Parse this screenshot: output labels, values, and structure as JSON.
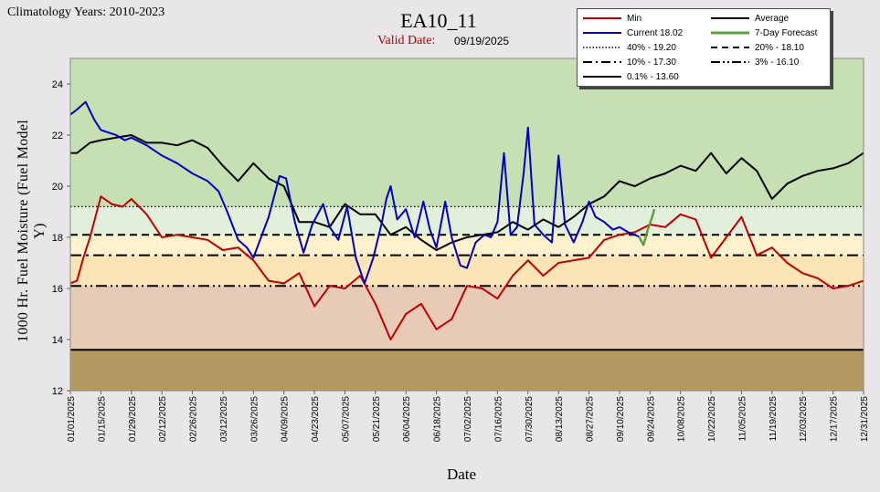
{
  "header": {
    "climatology": "Climatology Years: 2010-2023",
    "title": "EA10_11",
    "valid_label": "Valid Date:",
    "valid_date": "09/19/2025"
  },
  "colors": {
    "min": "#c00000",
    "current": "#0000c0",
    "average": "#000000",
    "forecast": "#5ca040",
    "band_above_40": "#c6e0b4",
    "band_20_40": "#e2efda",
    "band_10_20": "#fff2cc",
    "band_3_10": "#fce4b6",
    "band_01_3": "#e8cbb6",
    "band_below_01": "#b49a60"
  },
  "legend": [
    {
      "label": "Min",
      "icon": "line-solid-red"
    },
    {
      "label": "Average",
      "icon": "line-solid-black"
    },
    {
      "label": "Current 18.02",
      "icon": "line-solid-blue"
    },
    {
      "label": "7-Day Forecast",
      "icon": "line-solid-green"
    },
    {
      "label": "40% -  19.20",
      "icon": "line-dotted"
    },
    {
      "label": "20% -  18.10",
      "icon": "line-dashed"
    },
    {
      "label": "10% -  17.30",
      "icon": "line-dash-dot"
    },
    {
      "label": "3% -  16.10",
      "icon": "line-dash-dot-dot"
    },
    {
      "label": "0.1% -  13.60",
      "icon": "line-solid-thin"
    }
  ],
  "chart_data": {
    "type": "line",
    "xlabel": "Date",
    "ylabel": "1000 Hr. Fuel Moisture  (Fuel Model Y)",
    "ylim": [
      12,
      25
    ],
    "yticks": [
      12,
      14,
      16,
      18,
      20,
      22,
      24
    ],
    "xrange": [
      "01/01/2025",
      "12/31/2025"
    ],
    "xticks": [
      "01/01/2025",
      "01/15/2025",
      "01/29/2025",
      "02/12/2025",
      "02/26/2025",
      "03/12/2025",
      "03/26/2025",
      "04/09/2025",
      "04/23/2025",
      "05/07/2025",
      "05/21/2025",
      "06/04/2025",
      "06/18/2025",
      "07/02/2025",
      "07/16/2025",
      "07/30/2025",
      "08/13/2025",
      "08/27/2025",
      "09/10/2025",
      "09/24/2025",
      "10/08/2025",
      "10/22/2025",
      "11/05/2025",
      "11/19/2025",
      "12/03/2025",
      "12/17/2025",
      "12/31/2025"
    ],
    "grid": false,
    "legend_position": "top-right",
    "percentiles": [
      {
        "name": "40%",
        "value": 19.2,
        "style": "dotted"
      },
      {
        "name": "20%",
        "value": 18.1,
        "style": "dashed"
      },
      {
        "name": "10%",
        "value": 17.3,
        "style": "dash-dot"
      },
      {
        "name": "3%",
        "value": 16.1,
        "style": "dash-dot-dot"
      },
      {
        "name": "0.1%",
        "value": 13.6,
        "style": "solid"
      }
    ],
    "series": [
      {
        "name": "Average",
        "x": [
          "01/01",
          "01/04",
          "01/10",
          "01/15",
          "01/22",
          "01/29",
          "02/05",
          "02/12",
          "02/19",
          "02/26",
          "03/05",
          "03/12",
          "03/19",
          "03/26",
          "04/02",
          "04/09",
          "04/16",
          "04/23",
          "04/30",
          "05/07",
          "05/14",
          "05/21",
          "05/28",
          "06/04",
          "06/11",
          "06/18",
          "06/25",
          "07/02",
          "07/09",
          "07/16",
          "07/23",
          "07/30",
          "08/06",
          "08/13",
          "08/20",
          "08/27",
          "09/03",
          "09/10",
          "09/17",
          "09/24",
          "10/01",
          "10/08",
          "10/15",
          "10/22",
          "10/29",
          "11/05",
          "11/12",
          "11/19",
          "11/26",
          "12/03",
          "12/10",
          "12/17",
          "12/24",
          "12/31"
        ],
        "y": [
          21.3,
          21.3,
          21.7,
          21.8,
          21.9,
          22.0,
          21.7,
          21.7,
          21.6,
          21.8,
          21.5,
          20.8,
          20.2,
          20.9,
          20.3,
          20.0,
          18.6,
          18.6,
          18.4,
          19.3,
          18.9,
          18.9,
          18.1,
          18.4,
          17.9,
          17.5,
          17.8,
          18.0,
          18.1,
          18.2,
          18.6,
          18.3,
          18.7,
          18.4,
          18.8,
          19.3,
          19.6,
          20.2,
          20.0,
          20.3,
          20.5,
          20.8,
          20.6,
          21.3,
          20.5,
          21.1,
          20.6,
          19.5,
          20.1,
          20.4,
          20.6,
          20.7,
          20.9,
          21.3
        ]
      },
      {
        "name": "Min",
        "x": [
          "01/01",
          "01/04",
          "01/07",
          "01/10",
          "01/15",
          "01/20",
          "01/25",
          "01/29",
          "02/05",
          "02/12",
          "02/19",
          "02/26",
          "03/05",
          "03/12",
          "03/19",
          "03/26",
          "04/02",
          "04/09",
          "04/16",
          "04/23",
          "04/30",
          "05/07",
          "05/14",
          "05/21",
          "05/28",
          "06/04",
          "06/11",
          "06/18",
          "06/25",
          "07/02",
          "07/09",
          "07/16",
          "07/23",
          "07/30",
          "08/06",
          "08/13",
          "08/20",
          "08/27",
          "09/03",
          "09/10",
          "09/17",
          "09/24",
          "10/01",
          "10/08",
          "10/15",
          "10/22",
          "10/29",
          "11/05",
          "11/12",
          "11/19",
          "11/26",
          "12/03",
          "12/10",
          "12/17",
          "12/24",
          "12/31"
        ],
        "y": [
          16.2,
          16.3,
          17.2,
          18.0,
          19.6,
          19.3,
          19.2,
          19.5,
          18.9,
          18.0,
          18.1,
          18.0,
          17.9,
          17.5,
          17.6,
          17.1,
          16.3,
          16.2,
          16.6,
          15.3,
          16.1,
          16.0,
          16.5,
          15.4,
          14.0,
          15.0,
          15.4,
          14.4,
          14.8,
          16.1,
          16.0,
          15.6,
          16.5,
          17.1,
          16.5,
          17.0,
          17.1,
          17.2,
          17.9,
          18.1,
          18.2,
          18.5,
          18.4,
          18.9,
          18.7,
          17.2,
          18.0,
          18.8,
          17.3,
          17.6,
          17.0,
          16.6,
          16.4,
          16.0,
          16.1,
          16.3
        ]
      },
      {
        "name": "Current 18.02",
        "x": [
          "01/01",
          "01/04",
          "01/08",
          "01/12",
          "01/15",
          "01/22",
          "01/26",
          "01/29",
          "02/05",
          "02/12",
          "02/19",
          "02/26",
          "03/05",
          "03/10",
          "03/14",
          "03/19",
          "03/23",
          "03/26",
          "04/02",
          "04/07",
          "04/10",
          "04/14",
          "04/18",
          "04/22",
          "04/27",
          "04/30",
          "05/04",
          "05/08",
          "05/12",
          "05/16",
          "05/20",
          "05/24",
          "05/26",
          "05/28",
          "05/31",
          "06/04",
          "06/08",
          "06/12",
          "06/15",
          "06/18",
          "06/22",
          "06/25",
          "06/29",
          "07/02",
          "07/06",
          "07/10",
          "07/13",
          "07/16",
          "07/19",
          "07/22",
          "07/25",
          "07/28",
          "07/30",
          "08/02",
          "08/06",
          "08/10",
          "08/13",
          "08/16",
          "08/20",
          "08/24",
          "08/27",
          "08/30",
          "09/03",
          "09/07",
          "09/10",
          "09/14",
          "09/17",
          "09/19"
        ],
        "y": [
          22.8,
          23.0,
          23.3,
          22.6,
          22.2,
          22.0,
          21.8,
          21.9,
          21.6,
          21.2,
          20.9,
          20.5,
          20.2,
          19.8,
          19.0,
          17.9,
          17.6,
          17.2,
          18.8,
          20.4,
          20.3,
          18.6,
          17.4,
          18.5,
          19.3,
          18.4,
          17.9,
          19.2,
          17.2,
          16.2,
          17.2,
          18.6,
          19.5,
          20.0,
          18.7,
          19.1,
          18.0,
          19.4,
          18.3,
          17.6,
          19.4,
          18.0,
          16.9,
          16.8,
          17.8,
          18.1,
          18.0,
          18.6,
          21.3,
          18.1,
          18.4,
          20.5,
          22.3,
          18.5,
          18.1,
          17.8,
          21.2,
          18.5,
          17.8,
          18.6,
          19.4,
          18.8,
          18.6,
          18.3,
          18.4,
          18.2,
          18.1,
          18.02
        ]
      },
      {
        "name": "7-Day Forecast",
        "x": [
          "09/19",
          "09/21",
          "09/23",
          "09/25",
          "09/26"
        ],
        "y": [
          18.02,
          17.7,
          18.3,
          18.8,
          19.1
        ]
      }
    ]
  }
}
